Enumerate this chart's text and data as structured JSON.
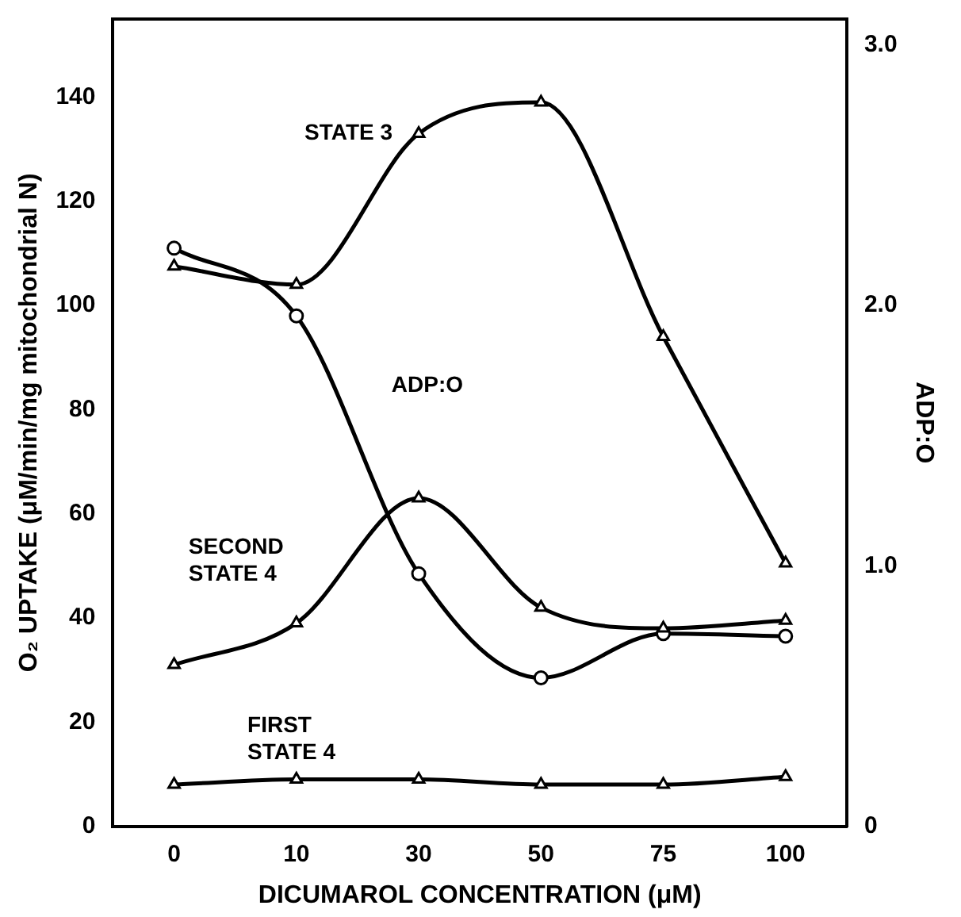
{
  "chart_data": {
    "type": "line",
    "xlabel": "DICUMAROL CONCENTRATION (μM)",
    "ylabel": "O₂ UPTAKE (μM/min/mg mitochondrial N)",
    "y2label": "ADP:O",
    "categories": [
      "0",
      "10",
      "30",
      "50",
      "75",
      "100"
    ],
    "series": [
      {
        "name": "STATE 3",
        "color": "#000000",
        "marker": "triangle",
        "values": [
          107.5,
          104,
          133,
          139,
          94,
          50.5
        ]
      },
      {
        "name": "ADP:O",
        "color": "#000000",
        "marker": "circle",
        "axis": "y2",
        "values": [
          2.22,
          1.96,
          0.97,
          0.57,
          0.74,
          0.73
        ]
      },
      {
        "name": "SECOND STATE 4",
        "color": "#000000",
        "marker": "triangle",
        "values": [
          31,
          39,
          63,
          42,
          38,
          39.5
        ]
      },
      {
        "name": "FIRST STATE 4",
        "color": "#000000",
        "marker": "triangle",
        "values": [
          8,
          9,
          9,
          8,
          8,
          9.5
        ]
      }
    ],
    "ylim": [
      0,
      155
    ],
    "yticks": [
      0,
      20,
      40,
      60,
      80,
      100,
      120,
      140
    ],
    "y2lim": [
      0,
      3.1
    ],
    "y2ticks": [
      {
        "value": 0,
        "label": "0"
      },
      {
        "value": 1,
        "label": "1.0"
      },
      {
        "value": 2,
        "label": "2.0"
      },
      {
        "value": 3,
        "label": "3.0"
      }
    ],
    "grid": false,
    "legend": false
  }
}
